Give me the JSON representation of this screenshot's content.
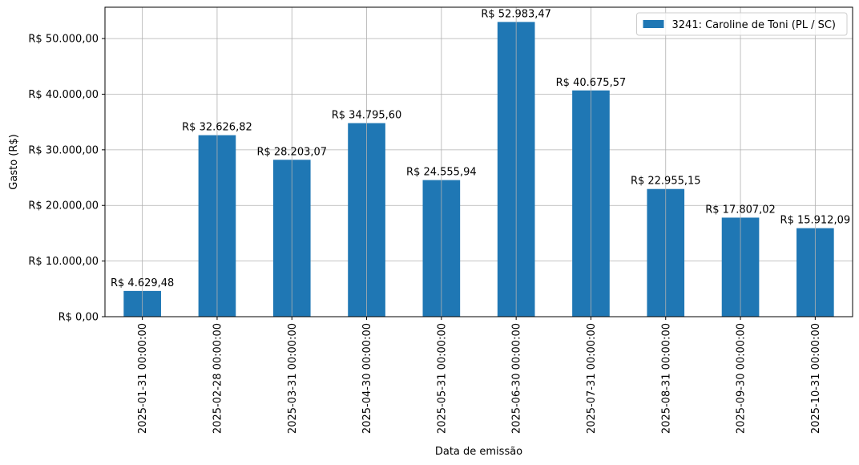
{
  "chart_data": {
    "type": "bar",
    "categories": [
      "2025-01-31 00:00:00",
      "2025-02-28 00:00:00",
      "2025-03-31 00:00:00",
      "2025-04-30 00:00:00",
      "2025-05-31 00:00:00",
      "2025-06-30 00:00:00",
      "2025-07-31 00:00:00",
      "2025-08-31 00:00:00",
      "2025-09-30 00:00:00",
      "2025-10-31 00:00:00"
    ],
    "series": [
      {
        "name": "3241: Caroline de Toni (PL / SC)",
        "values": [
          4629.48,
          32626.82,
          28203.07,
          34795.6,
          24555.94,
          52983.47,
          40675.57,
          22955.15,
          17807.02,
          15912.09
        ],
        "color": "#1f77b4"
      }
    ],
    "data_labels": [
      "R$ 4.629,48",
      "R$ 32.626,82",
      "R$ 28.203,07",
      "R$ 34.795,60",
      "R$ 24.555,94",
      "R$ 52.983,47",
      "R$ 40.675,57",
      "R$ 22.955,15",
      "R$ 17.807,02",
      "R$ 15.912,09"
    ],
    "xlabel": "Data de emissão",
    "ylabel": "Gasto (R$)",
    "ylim": [
      0,
      55633.64
    ],
    "yticks": [
      0,
      10000,
      20000,
      30000,
      40000,
      50000
    ],
    "ytick_labels": [
      "R$ 0,00",
      "R$ 10.000,00",
      "R$ 20.000,00",
      "R$ 30.000,00",
      "R$ 40.000,00",
      "R$ 50.000,00"
    ],
    "grid": true,
    "legend_position": "top-right"
  }
}
